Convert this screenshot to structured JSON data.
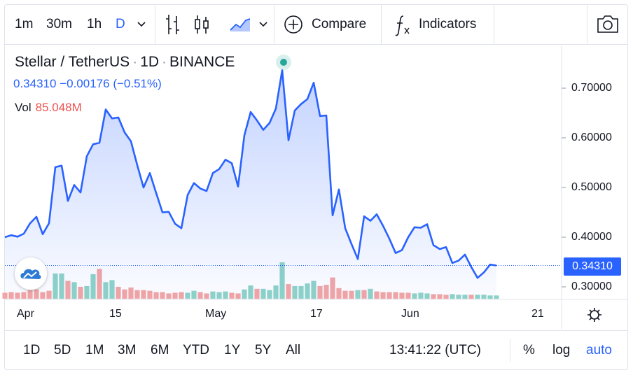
{
  "toolbar": {
    "intervals": [
      "1m",
      "30m",
      "1h",
      "D"
    ],
    "active_interval": "D",
    "compare_label": "Compare",
    "indicators_label": "Indicators"
  },
  "legend": {
    "symbol": "Stellar / TetherUS",
    "interval": "1D",
    "exchange": "BINANCE",
    "price": "0.34310",
    "change": "−0.00176",
    "change_pct": "(−0.51%)",
    "vol_label": "Vol",
    "vol_value": "85.048M"
  },
  "price_axis": {
    "ticks": [
      "0.70000",
      "0.60000",
      "0.50000",
      "0.40000",
      "0.30000"
    ],
    "last_price": "0.34310"
  },
  "time_axis": {
    "ticks": [
      "Apr",
      "15",
      "May",
      "17",
      "Jun",
      "21"
    ]
  },
  "bottombar": {
    "ranges": [
      "1D",
      "5D",
      "1M",
      "3M",
      "6M",
      "YTD",
      "1Y",
      "5Y",
      "All"
    ],
    "clock": "13:41:22 (UTC)",
    "percent_label": "%",
    "log_label": "log",
    "auto_label": "auto"
  },
  "colors": {
    "line": "#2962ff",
    "area_top": "#2962ff",
    "vol_up": "#8fd3c8",
    "vol_down": "#f3a6a5",
    "last_price_tag": "#2962ff"
  },
  "chart_data": {
    "type": "line",
    "ylim": [
      0.265,
      0.77
    ],
    "start": "2021-04-01",
    "y": [
      0.4,
      0.404,
      0.401,
      0.407,
      0.428,
      0.441,
      0.406,
      0.428,
      0.541,
      0.544,
      0.473,
      0.505,
      0.49,
      0.563,
      0.587,
      0.59,
      0.657,
      0.639,
      0.641,
      0.611,
      0.593,
      0.545,
      0.5,
      0.529,
      0.489,
      0.45,
      0.451,
      0.427,
      0.418,
      0.485,
      0.509,
      0.498,
      0.493,
      0.529,
      0.537,
      0.556,
      0.549,
      0.502,
      0.605,
      0.652,
      0.635,
      0.616,
      0.63,
      0.659,
      0.736,
      0.595,
      0.655,
      0.668,
      0.678,
      0.711,
      0.644,
      0.645,
      0.444,
      0.496,
      0.418,
      0.386,
      0.356,
      0.442,
      0.433,
      0.446,
      0.423,
      0.397,
      0.368,
      0.374,
      0.4,
      0.42,
      0.419,
      0.426,
      0.384,
      0.376,
      0.38,
      0.348,
      0.353,
      0.365,
      0.34,
      0.318,
      0.329,
      0.345,
      0.343
    ],
    "volume_up": [
      0,
      0,
      0,
      0,
      0,
      0,
      0,
      0,
      1,
      1,
      0,
      1,
      0,
      1,
      1,
      0,
      1,
      1,
      0,
      0,
      0,
      0,
      0,
      0,
      0,
      0,
      0,
      0,
      0,
      1,
      1,
      0,
      0,
      1,
      1,
      1,
      0,
      0,
      1,
      1,
      0,
      1,
      1,
      1,
      1,
      0,
      1,
      1,
      1,
      1,
      0,
      0,
      0,
      0,
      0,
      0,
      1,
      0,
      1,
      0,
      0,
      0,
      0,
      0,
      0,
      1,
      1,
      1,
      0,
      0,
      0,
      1,
      1,
      1,
      0,
      1,
      1,
      1,
      1
    ],
    "volume": [
      9,
      10,
      9,
      10,
      13,
      14,
      10,
      12,
      38,
      38,
      27,
      25,
      18,
      19,
      37,
      45,
      25,
      28,
      18,
      14,
      17,
      13,
      13,
      12,
      10,
      10,
      8,
      9,
      10,
      9,
      12,
      10,
      8,
      11,
      10,
      11,
      9,
      8,
      14,
      20,
      15,
      15,
      13,
      20,
      55,
      22,
      19,
      19,
      23,
      27,
      19,
      21,
      32,
      16,
      12,
      12,
      13,
      13,
      15,
      11,
      10,
      10,
      10,
      9,
      9,
      8,
      9,
      8,
      7,
      7,
      6,
      7,
      6,
      6,
      6,
      6,
      6,
      5,
      5
    ],
    "volume_max": 100
  }
}
